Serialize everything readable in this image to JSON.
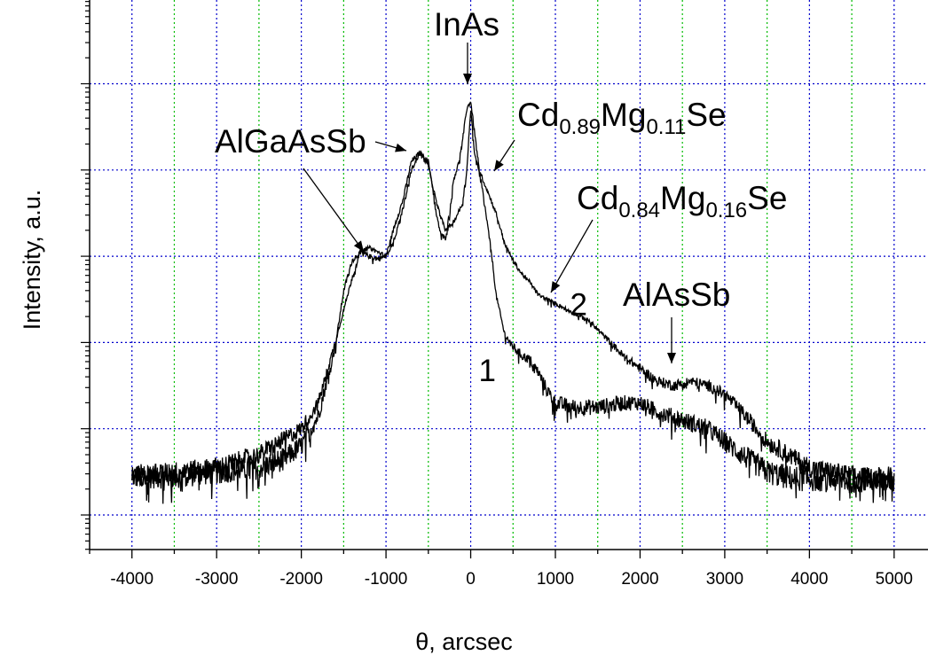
{
  "chart_data": {
    "type": "line",
    "title": "",
    "xlabel": "θ, arcsec",
    "ylabel": "Intensity, a.u.",
    "y_scale": "log",
    "y_decades": 6,
    "y_tick_labels": [],
    "xlim": [
      -4500,
      5400
    ],
    "x_ticks": [
      -4000,
      -3000,
      -2000,
      -1000,
      0,
      1000,
      2000,
      3000,
      4000,
      5000
    ],
    "x_grid_minor": [
      -3500,
      -2500,
      -1500,
      -500,
      500,
      1500,
      2500,
      3500,
      4500
    ],
    "grid": true,
    "grid_colors": {
      "major_vertical": "#0000cc",
      "minor_vertical": "#00bb00",
      "horizontal": "#0000cc"
    },
    "curve_labels": [
      {
        "text": "1",
        "x": 300,
        "y_decade": 1.55
      },
      {
        "text": "2",
        "x": 1380,
        "y_decade": 2.32
      }
    ],
    "annotations": [
      {
        "id": "inas",
        "parts": [
          [
            "InAs",
            "n"
          ]
        ],
        "peak_x": 0,
        "peak_y": 5.0
      },
      {
        "id": "cdmg089",
        "parts": [
          [
            "Cd",
            "n"
          ],
          [
            "0.89",
            "s"
          ],
          [
            "Mg",
            "n"
          ],
          [
            "0.11",
            "s"
          ],
          [
            "Se",
            "n"
          ]
        ],
        "peak_x": 300,
        "peak_y": 3.9
      },
      {
        "id": "algaassb",
        "parts": [
          [
            "AlGaAsSb",
            "n"
          ]
        ],
        "peak_x": -650,
        "peak_y": 4.2
      },
      {
        "id": "cdmg084",
        "parts": [
          [
            "Cd",
            "n"
          ],
          [
            "0.84",
            "s"
          ],
          [
            "Mg",
            "n"
          ],
          [
            "0.16",
            "s"
          ],
          [
            "Se",
            "n"
          ]
        ],
        "peak_x": 1000,
        "peak_y": 2.55
      },
      {
        "id": "alassb",
        "parts": [
          [
            "AlAsSb",
            "n"
          ]
        ],
        "peak_x": 2450,
        "peak_y": 1.55
      }
    ],
    "series": [
      {
        "x": [
          -4000,
          -3500,
          -3000,
          -2500,
          -2200,
          -2000,
          -1800,
          -1600,
          -1500,
          -1400,
          -1300,
          -1200,
          -1100,
          -1000,
          -900,
          -800,
          -700,
          -600,
          -500,
          -450,
          -400,
          -350,
          -300,
          -250,
          -200,
          -150,
          -100,
          -50,
          0,
          50,
          100,
          150,
          200,
          250,
          300,
          400,
          500,
          600,
          700,
          800,
          900,
          1000,
          1200,
          1500,
          1800,
          2000,
          2200,
          2500,
          2800,
          3000,
          3200,
          3500,
          3800,
          4000,
          4500,
          5000
        ],
        "y": [
          0.45,
          0.45,
          0.5,
          0.55,
          0.65,
          0.8,
          1.15,
          1.95,
          2.6,
          2.95,
          3.05,
          3.0,
          2.97,
          3.0,
          3.35,
          3.65,
          4.1,
          4.2,
          4.1,
          3.8,
          3.45,
          3.25,
          3.2,
          3.5,
          3.9,
          4.05,
          4.3,
          4.7,
          4.8,
          4.4,
          4.0,
          3.7,
          3.35,
          3.0,
          2.55,
          2.1,
          1.95,
          1.85,
          1.8,
          1.65,
          1.45,
          1.3,
          1.25,
          1.25,
          1.3,
          1.3,
          1.2,
          1.1,
          1.0,
          0.85,
          0.7,
          0.5,
          0.42,
          0.42,
          0.4,
          0.42
        ],
        "noise": 0.12
      },
      {
        "x": [
          -4000,
          -3500,
          -3000,
          -2500,
          -2000,
          -1800,
          -1600,
          -1400,
          -1300,
          -1200,
          -1100,
          -1000,
          -900,
          -800,
          -700,
          -600,
          -500,
          -400,
          -300,
          -200,
          -100,
          -50,
          0,
          50,
          100,
          200,
          300,
          400,
          500,
          600,
          700,
          800,
          1000,
          1200,
          1400,
          1600,
          1800,
          2000,
          2200,
          2400,
          2600,
          2800,
          3000,
          3200,
          3500,
          4000,
          4500,
          5000
        ],
        "y": [
          0.45,
          0.5,
          0.55,
          0.7,
          1.0,
          1.3,
          2.0,
          2.75,
          3.05,
          3.1,
          3.05,
          3.0,
          3.2,
          3.55,
          4.0,
          4.2,
          4.05,
          3.6,
          3.3,
          3.4,
          3.6,
          3.95,
          4.7,
          4.15,
          4.0,
          3.75,
          3.5,
          3.15,
          2.95,
          2.8,
          2.7,
          2.55,
          2.45,
          2.35,
          2.25,
          2.05,
          1.85,
          1.7,
          1.55,
          1.5,
          1.55,
          1.5,
          1.4,
          1.2,
          0.85,
          0.55,
          0.45,
          0.4
        ],
        "noise": 0.1
      }
    ]
  }
}
